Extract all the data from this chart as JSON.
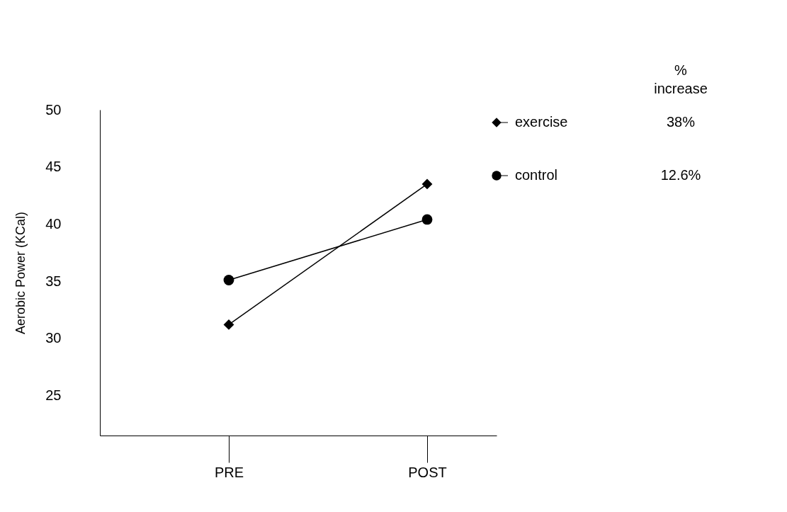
{
  "chart_data": {
    "type": "line",
    "ylabel": "Aerobic Power (KCal)",
    "categories": [
      "PRE",
      "POST"
    ],
    "series": [
      {
        "name": "exercise",
        "color": "#000000",
        "marker": "diamond",
        "values": [
          31.2,
          43.5
        ]
      },
      {
        "name": "control",
        "color": "#000000",
        "marker": "circle",
        "values": [
          35.1,
          40.4
        ]
      }
    ],
    "ylim": [
      21.5,
      50
    ],
    "yticks": [
      25,
      30,
      35,
      40,
      45,
      50
    ],
    "grid": false,
    "legend": "top right",
    "annotations": [
      "% increase",
      "38%",
      "12.6%"
    ]
  }
}
